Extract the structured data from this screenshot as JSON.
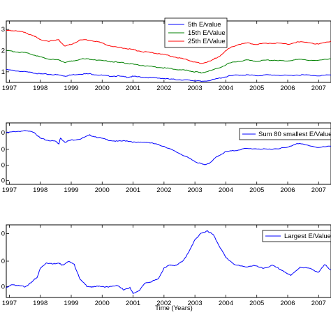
{
  "chart_data": [
    {
      "type": "line",
      "x_ticks": [
        "1997",
        "1998",
        "1999",
        "2000",
        "2001",
        "2002",
        "2003",
        "2004",
        "2005",
        "2006",
        "2007"
      ],
      "xlim": [
        1996.9,
        2007.4
      ],
      "ylim": [
        0.5,
        3.4
      ],
      "y_ticks": [
        "1",
        "2",
        "3"
      ],
      "xlabel": "",
      "legend_position": "top-right",
      "grid": false,
      "series": [
        {
          "name": "5th E/value",
          "color": "#0000ff",
          "x": [
            1996.9,
            1997.2,
            1997.5,
            1997.8,
            1998.0,
            1998.3,
            1998.6,
            1998.8,
            1999.0,
            1999.3,
            1999.6,
            1999.9,
            2000.2,
            2000.5,
            2000.8,
            2001.0,
            2001.3,
            2001.6,
            2001.9,
            2002.2,
            2002.5,
            2002.8,
            2003.0,
            2003.2,
            2003.5,
            2003.8,
            2004.1,
            2004.4,
            2004.7,
            2005.0,
            2005.3,
            2005.6,
            2006.0,
            2006.3,
            2006.6,
            2007.0,
            2007.4
          ],
          "y": [
            1.1,
            1.05,
            1.0,
            0.95,
            0.9,
            0.88,
            0.85,
            0.8,
            0.85,
            0.9,
            0.9,
            0.85,
            0.8,
            0.8,
            0.75,
            0.78,
            0.75,
            0.72,
            0.7,
            0.65,
            0.63,
            0.6,
            0.58,
            0.55,
            0.6,
            0.7,
            0.8,
            0.85,
            0.85,
            0.82,
            0.85,
            0.85,
            0.82,
            0.85,
            0.85,
            0.82,
            0.85
          ]
        },
        {
          "name": "15th E/Value",
          "color": "#008000",
          "x": [
            1996.9,
            1997.2,
            1997.5,
            1997.8,
            1998.0,
            1998.3,
            1998.6,
            1998.8,
            1999.0,
            1999.3,
            1999.6,
            1999.9,
            2000.2,
            2000.5,
            2000.8,
            2001.0,
            2001.3,
            2001.6,
            2001.9,
            2002.2,
            2002.5,
            2002.8,
            2003.0,
            2003.2,
            2003.5,
            2003.8,
            2004.1,
            2004.4,
            2004.7,
            2005.0,
            2005.3,
            2005.6,
            2006.0,
            2006.3,
            2006.6,
            2007.0,
            2007.4
          ],
          "y": [
            2.0,
            1.95,
            1.9,
            1.8,
            1.7,
            1.6,
            1.55,
            1.45,
            1.5,
            1.6,
            1.6,
            1.55,
            1.5,
            1.45,
            1.4,
            1.35,
            1.3,
            1.25,
            1.2,
            1.15,
            1.1,
            1.05,
            1.0,
            0.95,
            1.05,
            1.2,
            1.4,
            1.5,
            1.55,
            1.5,
            1.55,
            1.55,
            1.5,
            1.6,
            1.55,
            1.55,
            1.6
          ]
        },
        {
          "name": "25th E/Value",
          "color": "#ff0000",
          "x": [
            1996.9,
            1997.2,
            1997.5,
            1997.8,
            1998.0,
            1998.3,
            1998.6,
            1998.8,
            1999.0,
            1999.3,
            1999.6,
            1999.9,
            2000.2,
            2000.5,
            2000.8,
            2001.0,
            2001.3,
            2001.6,
            2001.9,
            2002.2,
            2002.5,
            2002.8,
            2003.0,
            2003.2,
            2003.5,
            2003.8,
            2004.1,
            2004.4,
            2004.7,
            2005.0,
            2005.3,
            2005.6,
            2006.0,
            2006.3,
            2006.6,
            2007.0,
            2007.4
          ],
          "y": [
            2.95,
            2.95,
            2.85,
            2.7,
            2.5,
            2.45,
            2.5,
            2.2,
            2.3,
            2.5,
            2.5,
            2.4,
            2.25,
            2.15,
            2.1,
            2.05,
            1.95,
            1.9,
            1.85,
            1.75,
            1.65,
            1.55,
            1.45,
            1.4,
            1.5,
            1.75,
            2.1,
            2.3,
            2.35,
            2.3,
            2.35,
            2.35,
            2.3,
            2.4,
            2.4,
            2.3,
            2.45
          ]
        }
      ]
    },
    {
      "type": "line",
      "x_ticks": [
        "1997",
        "1998",
        "1999",
        "2000",
        "2001",
        "2002",
        "2003",
        "2004",
        "2005",
        "2006",
        "2007"
      ],
      "xlim": [
        1996.9,
        2007.4
      ],
      "ylim": [
        0,
        100
      ],
      "y_ticks": [
        "0",
        "0",
        "0",
        "0"
      ],
      "xlabel": "",
      "legend_position": "top-right",
      "grid": false,
      "series": [
        {
          "name": "Sum 80 smallest E/Values",
          "color": "#0000ff",
          "x": [
            1996.9,
            1997.2,
            1997.5,
            1997.8,
            1998.0,
            1998.2,
            1998.5,
            1998.6,
            1998.65,
            1998.8,
            1999.0,
            1999.3,
            1999.6,
            1999.9,
            2000.2,
            2000.5,
            2000.8,
            2001.1,
            2001.4,
            2001.7,
            2002.0,
            2002.3,
            2002.6,
            2002.9,
            2003.1,
            2003.3,
            2003.5,
            2003.7,
            2004.0,
            2004.3,
            2004.6,
            2005.0,
            2005.3,
            2005.6,
            2006.0,
            2006.3,
            2006.6,
            2007.0,
            2007.4
          ],
          "y": [
            84,
            86,
            87,
            85,
            75,
            72,
            70,
            66,
            75,
            69,
            72,
            74,
            80,
            76,
            72,
            70,
            71,
            68,
            69,
            66,
            62,
            55,
            48,
            40,
            35,
            32,
            35,
            45,
            53,
            55,
            58,
            58,
            57,
            58,
            60,
            67,
            64,
            60,
            62
          ]
        }
      ]
    },
    {
      "type": "line",
      "x_ticks": [
        "1997",
        "1998",
        "1999",
        "2000",
        "2001",
        "2002",
        "2003",
        "2004",
        "2005",
        "2006",
        "2007"
      ],
      "xlim": [
        1996.9,
        2007.4
      ],
      "ylim": [
        0,
        100
      ],
      "y_ticks": [
        "0",
        "0",
        "0"
      ],
      "xlabel": "Time (Years)",
      "legend_position": "top-right",
      "grid": false,
      "series": [
        {
          "name": "Largest E/Value",
          "color": "#0000ff",
          "x": [
            1996.9,
            1997.1,
            1997.3,
            1997.5,
            1997.7,
            1997.9,
            1998.0,
            1998.2,
            1998.4,
            1998.6,
            1998.7,
            1998.9,
            1999.1,
            1999.3,
            1999.5,
            1999.7,
            1999.9,
            2000.2,
            2000.5,
            2000.7,
            2000.9,
            2001.0,
            2001.2,
            2001.4,
            2001.6,
            2001.8,
            2002.0,
            2002.2,
            2002.4,
            2002.6,
            2002.8,
            2003.0,
            2003.2,
            2003.4,
            2003.6,
            2003.8,
            2004.0,
            2004.3,
            2004.6,
            2004.9,
            2005.2,
            2005.5,
            2005.8,
            2006.1,
            2006.4,
            2006.7,
            2007.0,
            2007.2,
            2007.4
          ],
          "y": [
            13,
            18,
            16,
            15,
            20,
            28,
            40,
            48,
            46,
            48,
            44,
            50,
            45,
            24,
            16,
            14,
            16,
            14,
            17,
            10,
            14,
            5,
            10,
            20,
            22,
            25,
            40,
            45,
            44,
            50,
            62,
            80,
            88,
            92,
            86,
            70,
            55,
            45,
            42,
            44,
            40,
            44,
            38,
            30,
            42,
            40,
            35,
            45,
            38
          ]
        }
      ]
    }
  ],
  "colors": {
    "axes": "#000000",
    "background": "#ffffff"
  }
}
